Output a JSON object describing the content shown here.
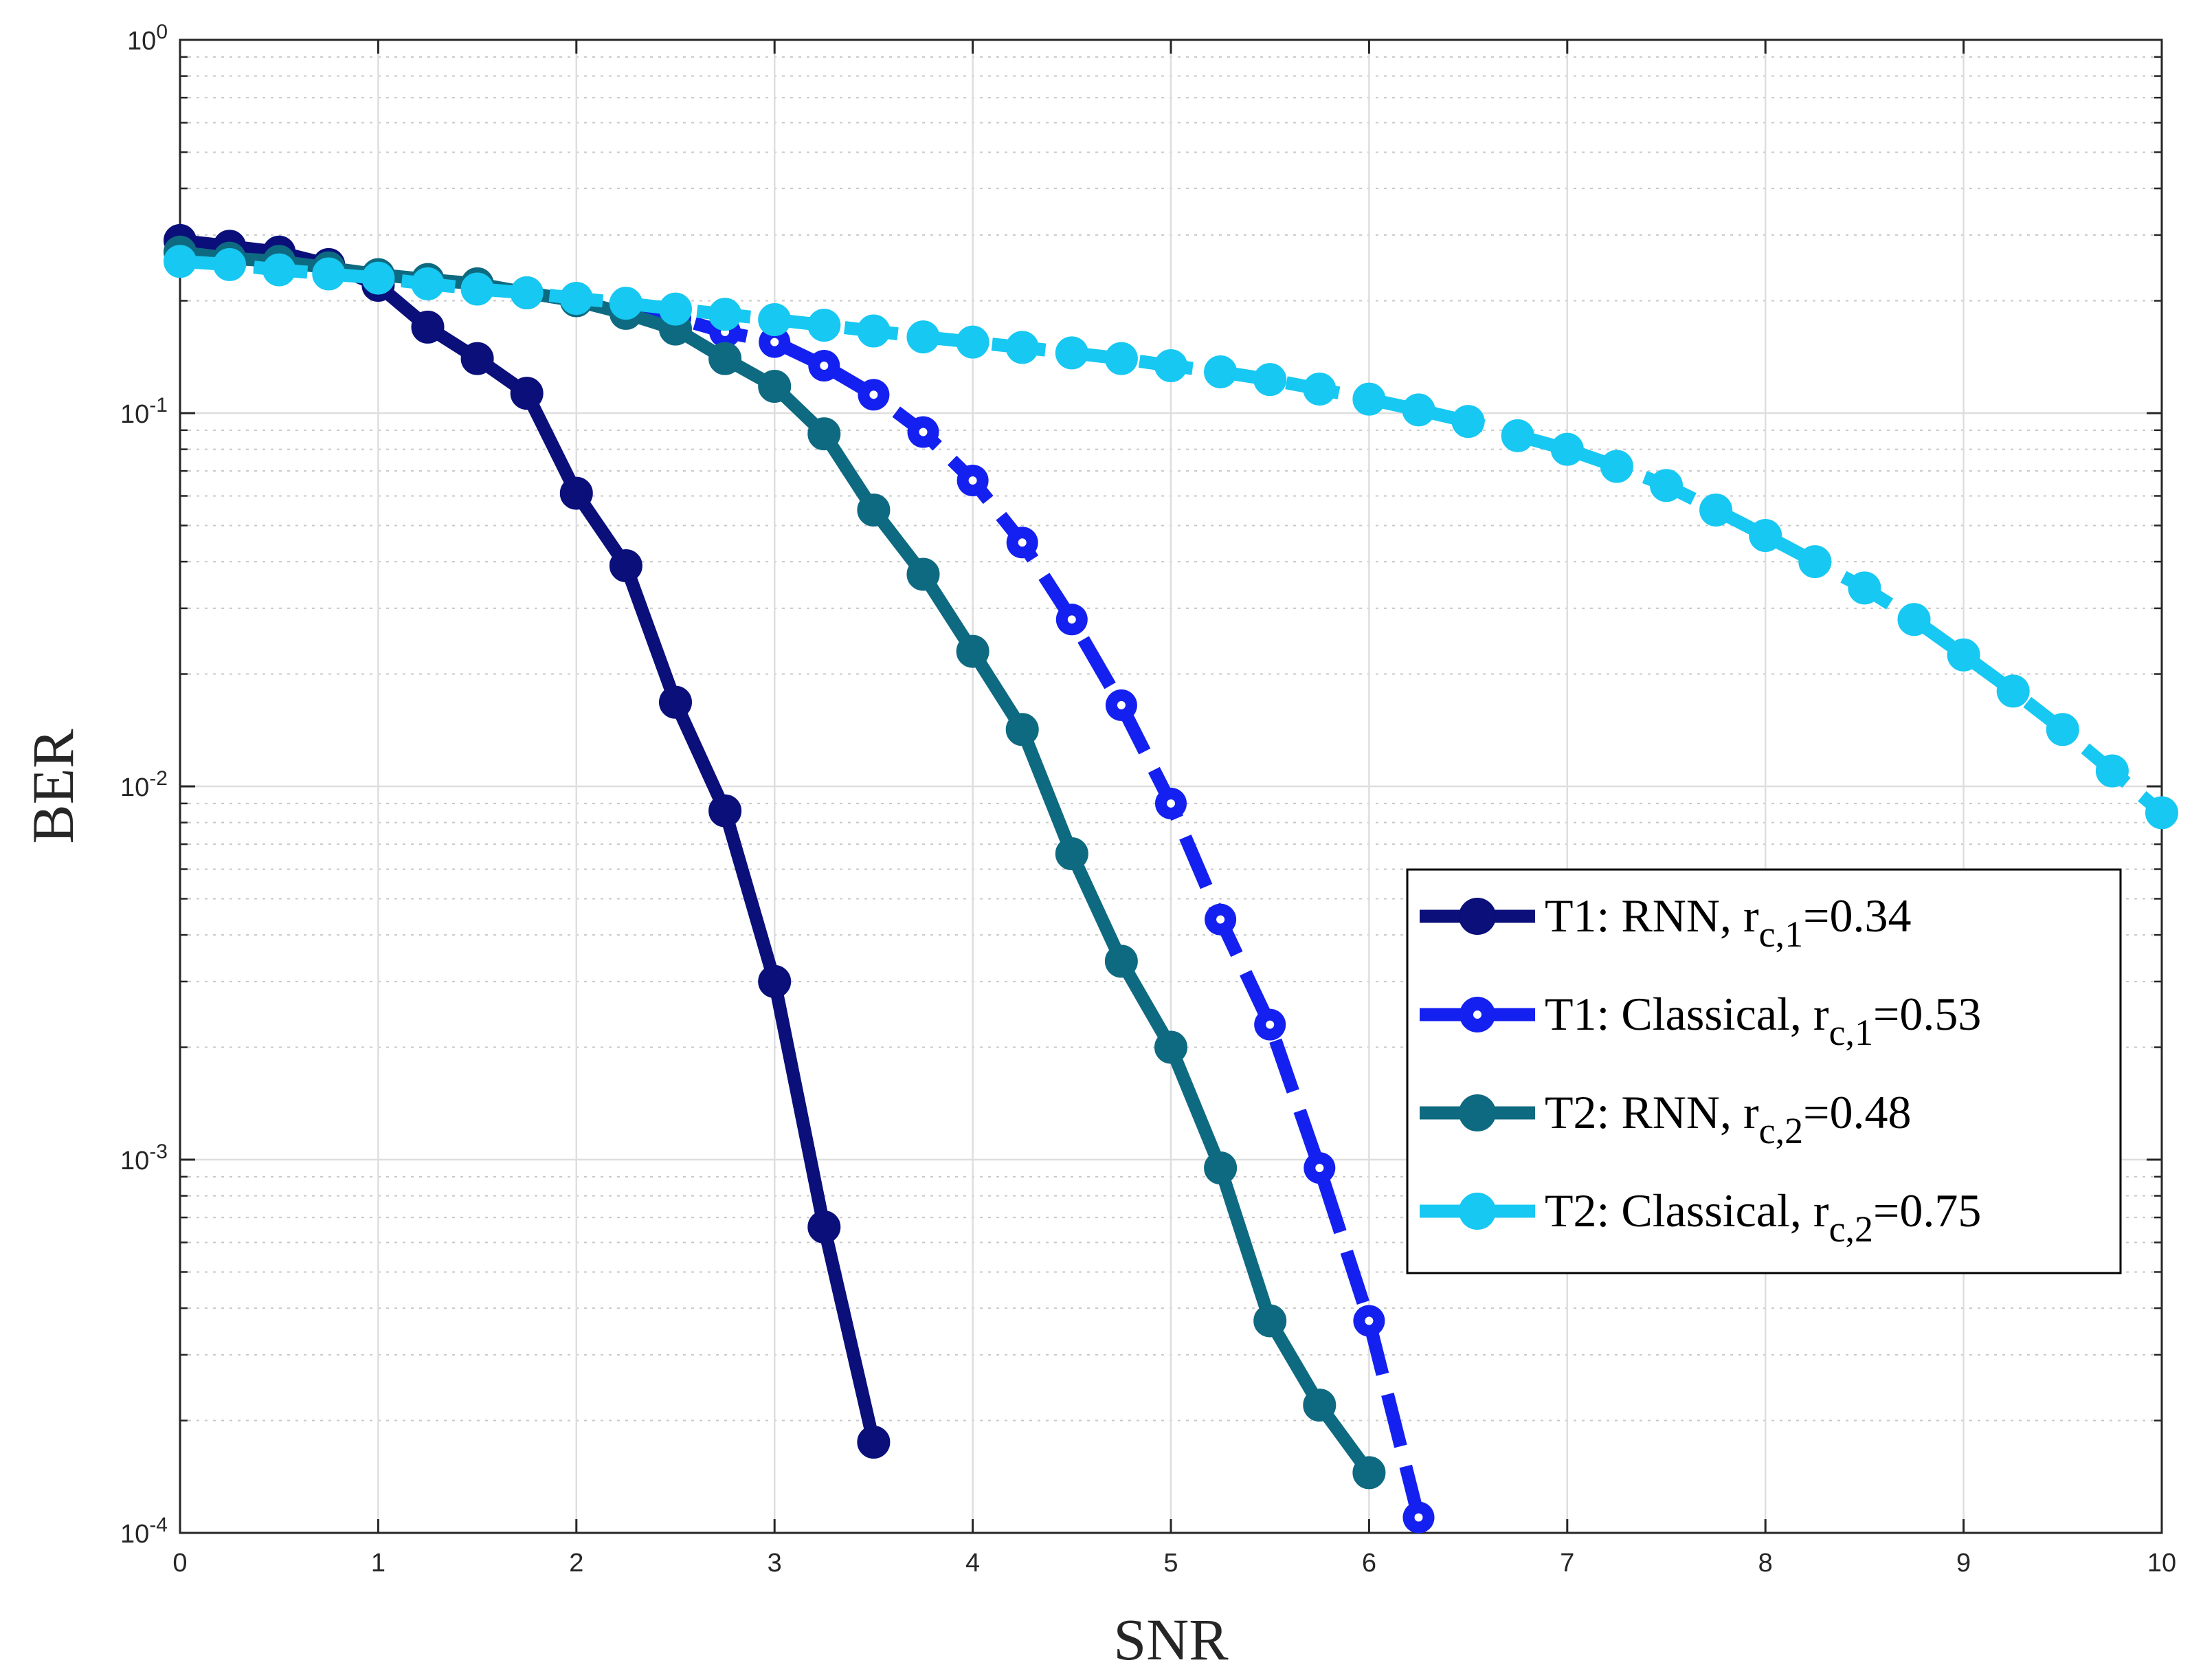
{
  "chart_data": {
    "type": "line",
    "title": "",
    "xlabel": "SNR",
    "ylabel": "BER",
    "xlim": [
      0,
      10
    ],
    "ylim": [
      0.0001,
      1
    ],
    "yscale": "log",
    "grid": true,
    "legend_position": "lower-right",
    "x_ticks": [
      "0",
      "1",
      "2",
      "3",
      "4",
      "5",
      "6",
      "7",
      "8",
      "9",
      "10"
    ],
    "y_ticks": [
      {
        "base": "10",
        "exp": "-4"
      },
      {
        "base": "10",
        "exp": "-3"
      },
      {
        "base": "10",
        "exp": "-2"
      },
      {
        "base": "10",
        "exp": "-1"
      },
      {
        "base": "10",
        "exp": "0"
      }
    ],
    "series": [
      {
        "name": "T1: RNN, r_c,1=0.34",
        "legend": {
          "prefix": "T1: RNN, r",
          "sub": "c,1",
          "suffix": "=0.34"
        },
        "color": "#0a0f7a",
        "style": "solid",
        "marker_filled": true,
        "x": [
          0,
          0.25,
          0.5,
          0.75,
          1,
          1.25,
          1.5,
          1.75,
          2,
          2.25,
          2.5,
          2.75,
          3,
          3.25,
          3.5
        ],
        "y": [
          0.29,
          0.28,
          0.27,
          0.25,
          0.22,
          0.17,
          0.14,
          0.113,
          0.061,
          0.039,
          0.0168,
          0.0086,
          0.003,
          0.00066,
          0.000175
        ]
      },
      {
        "name": "T1: Classical, r_c,1=0.53",
        "legend": {
          "prefix": "T1: Classical, r",
          "sub": "c,1",
          "suffix": "=0.53"
        },
        "color": "#1420f0",
        "style": "dashed",
        "marker_filled": false,
        "x": [
          0,
          0.25,
          0.5,
          0.75,
          1,
          1.25,
          1.5,
          1.75,
          2,
          2.25,
          2.5,
          2.75,
          3,
          3.25,
          3.5,
          3.75,
          4,
          4.25,
          4.5,
          4.75,
          5,
          5.25,
          5.5,
          5.75,
          6,
          6.25
        ],
        "y": [
          0.26,
          0.25,
          0.245,
          0.24,
          0.23,
          0.225,
          0.22,
          0.21,
          0.2,
          0.19,
          0.18,
          0.165,
          0.155,
          0.134,
          0.112,
          0.089,
          0.066,
          0.045,
          0.028,
          0.0165,
          0.009,
          0.0044,
          0.0023,
          0.00095,
          0.00037,
          0.00011
        ]
      },
      {
        "name": "T2: RNN, r_c,2=0.48",
        "legend": {
          "prefix": "T2: RNN, r",
          "sub": "c,2",
          "suffix": "=0.48"
        },
        "color": "#0e6a80",
        "style": "solid",
        "marker_filled": true,
        "x": [
          0,
          0.25,
          0.5,
          0.75,
          1,
          1.25,
          1.5,
          1.75,
          2,
          2.25,
          2.5,
          2.75,
          3,
          3.25,
          3.5,
          3.75,
          4,
          4.25,
          4.5,
          4.75,
          5,
          5.25,
          5.5,
          5.75,
          6
        ],
        "y": [
          0.27,
          0.26,
          0.255,
          0.245,
          0.235,
          0.228,
          0.222,
          0.21,
          0.2,
          0.185,
          0.168,
          0.14,
          0.118,
          0.088,
          0.055,
          0.037,
          0.023,
          0.0142,
          0.0066,
          0.0034,
          0.002,
          0.00095,
          0.00037,
          0.00022,
          0.000145
        ]
      },
      {
        "name": "T2: Classical, r_c,2=0.75",
        "legend": {
          "prefix": "T2: Classical, r",
          "sub": "c,2",
          "suffix": "=0.75"
        },
        "color": "#16c8f2",
        "style": "dashed",
        "marker_filled": true,
        "x": [
          0,
          0.25,
          0.5,
          0.75,
          1,
          1.25,
          1.5,
          1.75,
          2,
          2.25,
          2.5,
          2.75,
          3,
          3.25,
          3.5,
          3.75,
          4,
          4.25,
          4.5,
          4.75,
          5,
          5.25,
          5.5,
          5.75,
          6,
          6.25,
          6.5,
          6.75,
          7,
          7.25,
          7.5,
          7.75,
          8,
          8.25,
          8.5,
          8.75,
          9,
          9.25,
          9.5,
          9.75,
          10
        ],
        "y": [
          0.255,
          0.25,
          0.242,
          0.236,
          0.23,
          0.222,
          0.215,
          0.21,
          0.203,
          0.197,
          0.19,
          0.184,
          0.178,
          0.172,
          0.166,
          0.16,
          0.155,
          0.15,
          0.145,
          0.14,
          0.134,
          0.129,
          0.123,
          0.116,
          0.109,
          0.102,
          0.095,
          0.087,
          0.08,
          0.072,
          0.064,
          0.055,
          0.047,
          0.04,
          0.034,
          0.028,
          0.0225,
          0.018,
          0.0142,
          0.011,
          0.0085
        ]
      }
    ]
  }
}
